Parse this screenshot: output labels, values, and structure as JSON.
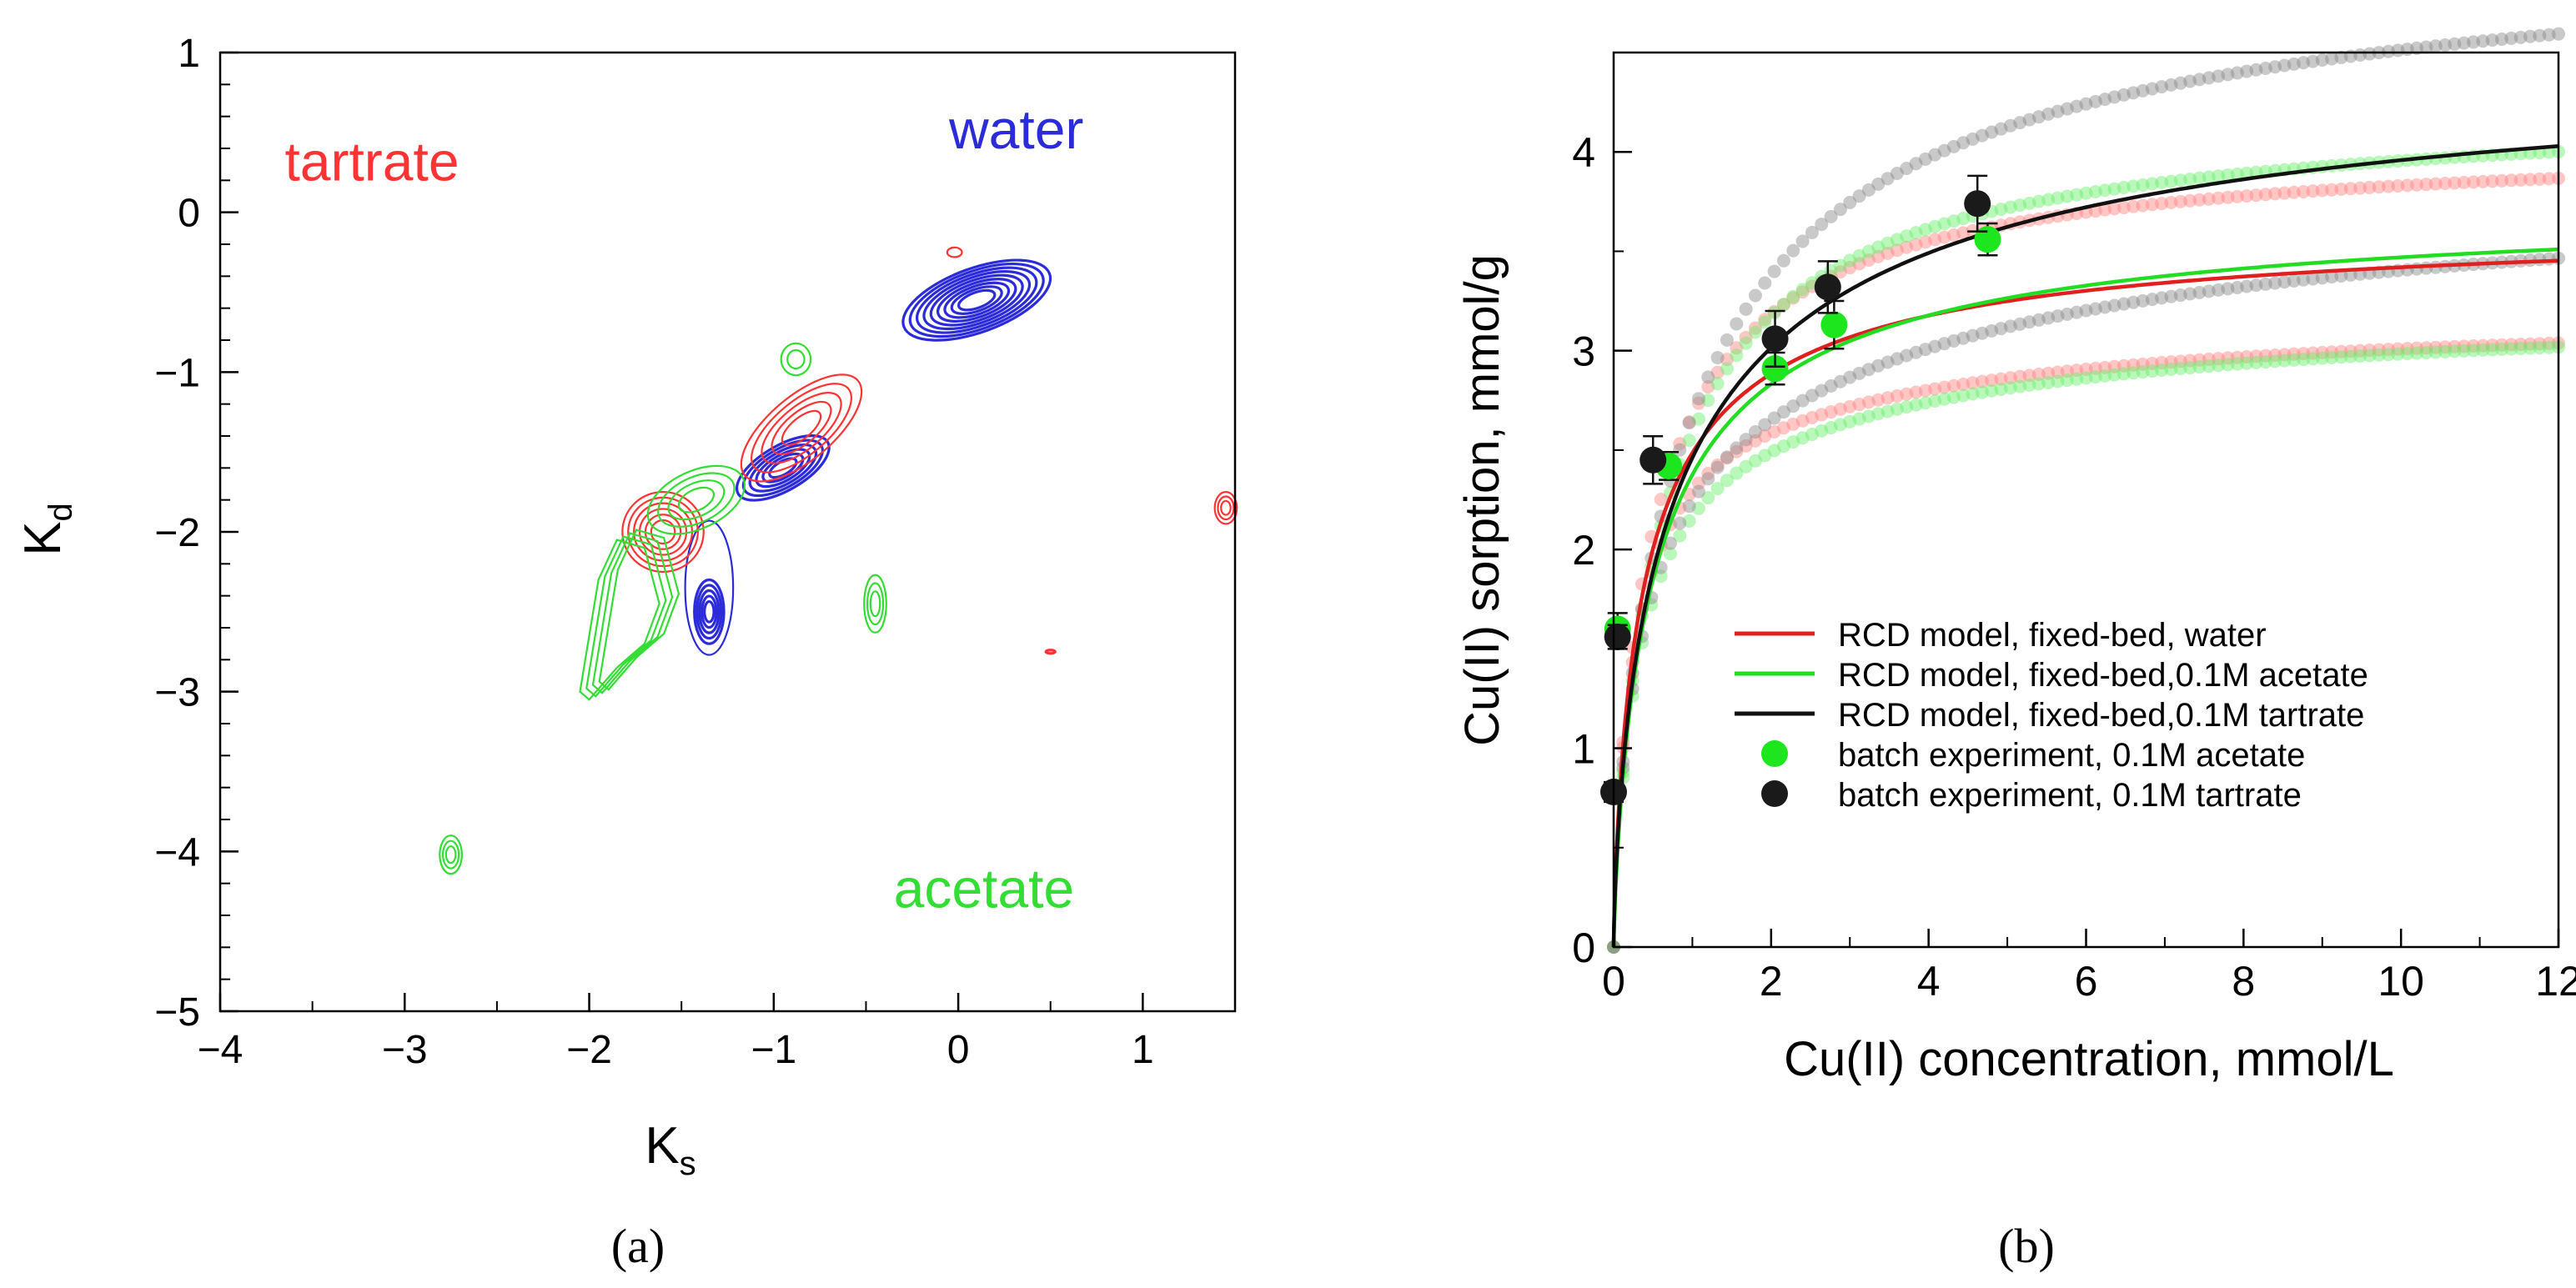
{
  "chart_data": [
    {
      "type": "contour",
      "panel_label": "(a)",
      "xlabel": {
        "main": "K",
        "sub": "s"
      },
      "ylabel": {
        "main": "K",
        "sub": "d"
      },
      "xlim": [
        -4,
        1.5
      ],
      "ylim": [
        -5,
        1
      ],
      "xticks": [
        -4,
        -3,
        -2,
        -1,
        0,
        1
      ],
      "xtick_labels": [
        "−4",
        "−3",
        "−2",
        "−1",
        "0",
        "1"
      ],
      "yticks": [
        -5,
        -4,
        -3,
        -2,
        -1,
        0,
        1
      ],
      "ytick_labels": [
        "−5",
        "−4",
        "−3",
        "−2",
        "−1",
        "0",
        "1"
      ],
      "colors": {
        "tartrate": "#ff3333",
        "water": "#2b2bd9",
        "acetate": "#33dd33"
      },
      "annotations": [
        {
          "text": "tartrate",
          "series": "tartrate",
          "x": -3.65,
          "y": 0.2
        },
        {
          "text": "water",
          "series": "water",
          "x": -0.05,
          "y": 0.4
        },
        {
          "text": "acetate",
          "series": "acetate",
          "x": -0.35,
          "y": -4.35
        }
      ],
      "contours": [
        {
          "series": "water",
          "cx": 0.1,
          "cy": -0.55,
          "rx": 0.42,
          "ry": 0.2,
          "angle": 20,
          "levels": 9,
          "thick": true
        },
        {
          "series": "water",
          "cx": -0.95,
          "cy": -1.6,
          "rx": 0.28,
          "ry": 0.14,
          "angle": 30,
          "levels": 6,
          "thick": true
        },
        {
          "series": "water",
          "cx": -1.35,
          "cy": -2.5,
          "rx": 0.08,
          "ry": 0.2,
          "angle": 0,
          "levels": 5,
          "thick": true
        },
        {
          "series": "water",
          "cx": -1.35,
          "cy": -2.35,
          "rx": 0.13,
          "ry": 0.42,
          "angle": 0,
          "levels": 1,
          "thick": false
        },
        {
          "series": "tartrate",
          "cx": -0.85,
          "cy": -1.35,
          "rx": 0.4,
          "ry": 0.2,
          "angle": 40,
          "levels": 5,
          "thick": false
        },
        {
          "series": "tartrate",
          "cx": -1.6,
          "cy": -2.0,
          "rx": 0.22,
          "ry": 0.25,
          "angle": 0,
          "levels": 6,
          "thick": false
        },
        {
          "series": "tartrate",
          "cx": -0.02,
          "cy": -0.25,
          "rx": 0.04,
          "ry": 0.03,
          "angle": 0,
          "levels": 1,
          "thick": false
        },
        {
          "series": "tartrate",
          "cx": 1.45,
          "cy": -1.85,
          "rx": 0.06,
          "ry": 0.1,
          "angle": 0,
          "levels": 3,
          "thick": false
        },
        {
          "series": "tartrate",
          "cx": 0.5,
          "cy": -2.75,
          "rx": 0.025,
          "ry": 0.008,
          "angle": 0,
          "levels": 1,
          "thick": true
        },
        {
          "series": "acetate",
          "cx": -1.42,
          "cy": -1.8,
          "rx": 0.28,
          "ry": 0.18,
          "angle": 25,
          "levels": 4,
          "thick": false
        },
        {
          "series": "acetate",
          "cx": -0.88,
          "cy": -0.92,
          "rx": 0.08,
          "ry": 0.1,
          "angle": 0,
          "levels": 2,
          "thick": false
        },
        {
          "series": "acetate",
          "cx": -0.45,
          "cy": -2.45,
          "rx": 0.06,
          "ry": 0.18,
          "angle": 0,
          "levels": 3,
          "thick": false
        },
        {
          "series": "acetate",
          "cx": -2.75,
          "cy": -4.02,
          "rx": 0.06,
          "ry": 0.12,
          "angle": 0,
          "levels": 3,
          "thick": false
        }
      ],
      "acetate_curve": {
        "points": [
          [
            -2.05,
            -3.0
          ],
          [
            -2.0,
            -2.65
          ],
          [
            -1.95,
            -2.3
          ],
          [
            -1.85,
            -2.05
          ],
          [
            -1.7,
            -2.1
          ],
          [
            -1.62,
            -2.45
          ],
          [
            -1.7,
            -2.7
          ],
          [
            -1.85,
            -2.85
          ],
          [
            -2.0,
            -3.05
          ]
        ],
        "levels": 4
      }
    },
    {
      "type": "line+scatter",
      "panel_label": "(b)",
      "xlabel": "Cu(II) concentration, mmol/L",
      "ylabel": "Cu(II) sorption, mmol/g",
      "xlim": [
        0,
        12
      ],
      "ylim": [
        0,
        4.5
      ],
      "xticks": [
        0,
        2,
        4,
        6,
        8,
        10,
        12
      ],
      "xtick_labels": [
        "0",
        "2",
        "4",
        "6",
        "8",
        "10",
        "12"
      ],
      "yticks": [
        0,
        1,
        2,
        3,
        4
      ],
      "ytick_labels": [
        "0",
        "1",
        "2",
        "3",
        "4"
      ],
      "series": [
        {
          "name": "RCD model, fixed-bed, water",
          "kind": "line",
          "color": "#e01f1f",
          "band_color": "#ff8080",
          "qmax": 3.68,
          "b": 2.5,
          "n": 0.8,
          "band": 0.12
        },
        {
          "name": "RCD model, fixed-bed,0.1M acetate",
          "kind": "line",
          "color": "#22dd22",
          "band_color": "#66ee66",
          "qmax": 3.78,
          "b": 1.9,
          "n": 0.82,
          "band": 0.14
        },
        {
          "name": "RCD model, fixed-bed,0.1M tartrate",
          "kind": "line",
          "color": "#111111",
          "band_color": "#888888",
          "qmax": 4.62,
          "b": 1.2,
          "n": 0.72,
          "band": 0.14
        },
        {
          "name": "batch experiment, 0.1M acetate",
          "kind": "scatter",
          "color": "#1ee61e",
          "points": [
            [
              0.05,
              1.6,
              0.08
            ],
            [
              0.7,
              2.42,
              0.07
            ],
            [
              2.05,
              2.91,
              0.08
            ],
            [
              2.8,
              3.13,
              0.12
            ],
            [
              4.75,
              3.56,
              0.08
            ]
          ]
        },
        {
          "name": "batch experiment, 0.1M tartrate",
          "kind": "scatter",
          "color": "#1a1a1a",
          "points": [
            [
              0.0,
              0.78,
              0.05
            ],
            [
              0.05,
              1.56,
              0.06
            ],
            [
              0.5,
              2.45,
              0.12
            ],
            [
              2.05,
              3.06,
              0.14
            ],
            [
              2.72,
              3.32,
              0.13
            ],
            [
              4.62,
              3.74,
              0.14
            ]
          ]
        }
      ],
      "legend_position": "center-right"
    }
  ]
}
